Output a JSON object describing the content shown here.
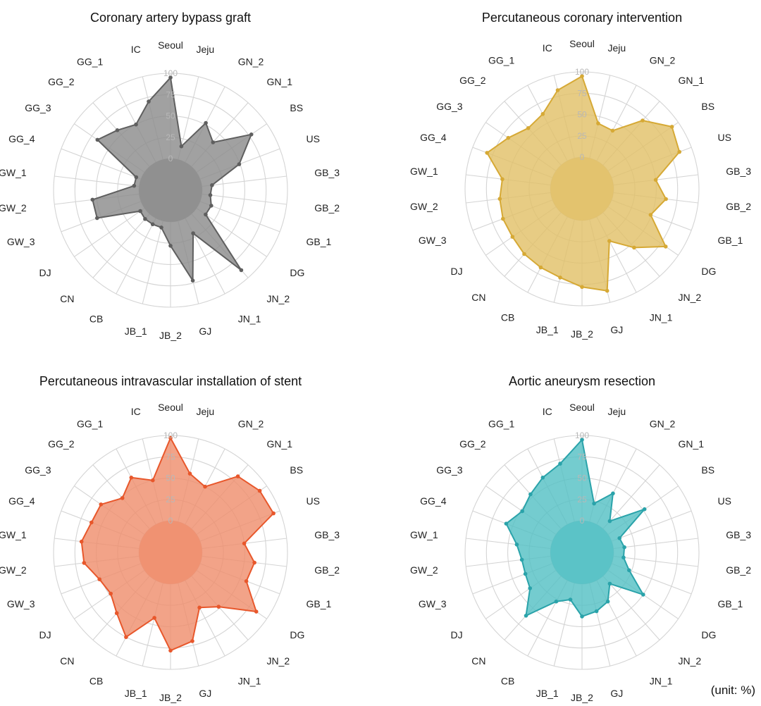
{
  "unit_note": "(unit: %)",
  "chart_data": [
    {
      "type": "radar",
      "title": "Coronary artery bypass graft",
      "color": "#5f5f5f",
      "fill": "#8c8c8c",
      "categories": [
        "Seoul",
        "Jeju",
        "GN_2",
        "GN_1",
        "BS",
        "US",
        "GB_3",
        "GB_2",
        "GB_1",
        "DG",
        "JN_2",
        "JN_1",
        "GJ",
        "JB_2",
        "JB_1",
        "CB",
        "CN",
        "DJ",
        "GW_3",
        "GW_2",
        "GW_1",
        "GG_4",
        "GG_3",
        "GG_2",
        "GG_1",
        "IC"
      ],
      "rticks": [
        0,
        25,
        50,
        75,
        100
      ],
      "rlim": [
        0,
        100
      ],
      "grid": true,
      "values": [
        95,
        16,
        52,
        38,
        78,
        49,
        12,
        10,
        14,
        13,
        88,
        20,
        72,
        28,
        8,
        8,
        8,
        6,
        55,
        55,
        6,
        6,
        67,
        57,
        50,
        70
      ]
    },
    {
      "type": "radar",
      "title": "Percutaneous coronary intervention",
      "color": "#d6a935",
      "fill": "#e2c169",
      "categories": [
        "Seoul",
        "Jeju",
        "GN_2",
        "GN_1",
        "BS",
        "US",
        "GB_3",
        "GB_2",
        "GB_1",
        "DG",
        "JN_2",
        "JN_1",
        "GJ",
        "JB_2",
        "JB_1",
        "CB",
        "CN",
        "DJ",
        "GW_3",
        "GW_2",
        "GW_1",
        "GG_4",
        "GG_3",
        "GG_2",
        "GG_1",
        "IC"
      ],
      "rticks": [
        0,
        25,
        50,
        75,
        100
      ],
      "rlim": [
        0,
        100
      ],
      "grid": true,
      "values": [
        95,
        42,
        40,
        70,
        91,
        85,
        50,
        62,
        49,
        82,
        55,
        32,
        86,
        78,
        70,
        67,
        65,
        62,
        62,
        60,
        57,
        82,
        68,
        58,
        62,
        82
      ]
    },
    {
      "type": "radar",
      "title": "Percutaneous intravascular installation of stent",
      "color": "#e8572b",
      "fill": "#ef8f6e",
      "categories": [
        "Seoul",
        "Jeju",
        "GN_2",
        "GN_1",
        "BS",
        "US",
        "GB_3",
        "GB_2",
        "GB_1",
        "DG",
        "JN_2",
        "JN_1",
        "GJ",
        "JB_2",
        "JB_1",
        "CB",
        "CN",
        "DJ",
        "GW_3",
        "GW_2",
        "GW_1",
        "GG_4",
        "GG_3",
        "GG_2",
        "GG_1",
        "IC"
      ],
      "rticks": [
        0,
        25,
        50,
        75,
        100
      ],
      "rlim": [
        0,
        100
      ],
      "grid": true,
      "values": [
        97,
        58,
        50,
        82,
        90,
        92,
        50,
        62,
        58,
        85,
        48,
        36,
        70,
        78,
        42,
        75,
        58,
        48,
        52,
        65,
        68,
        62,
        62,
        48,
        62,
        50
      ]
    },
    {
      "type": "radar",
      "title": "Aortic aneurysm resection",
      "color": "#2aa3aa",
      "fill": "#55c1c5",
      "categories": [
        "Seoul",
        "Jeju",
        "GN_2",
        "GN_1",
        "BS",
        "US",
        "GB_3",
        "GB_2",
        "GB_1",
        "DG",
        "JN_2",
        "JN_1",
        "GJ",
        "JB_2",
        "JB_1",
        "CB",
        "CN",
        "DJ",
        "GW_3",
        "GW_2",
        "GW_1",
        "GG_4",
        "GG_3",
        "GG_2",
        "GG_1",
        "IC"
      ],
      "rticks": [
        0,
        25,
        50,
        75,
        100
      ],
      "rlim": [
        0,
        100
      ],
      "grid": true,
      "values": [
        95,
        22,
        41,
        12,
        52,
        10,
        13,
        12,
        22,
        50,
        12,
        28,
        34,
        38,
        20,
        28,
        62,
        37,
        34,
        34,
        40,
        58,
        48,
        54,
        62,
        70
      ]
    }
  ]
}
